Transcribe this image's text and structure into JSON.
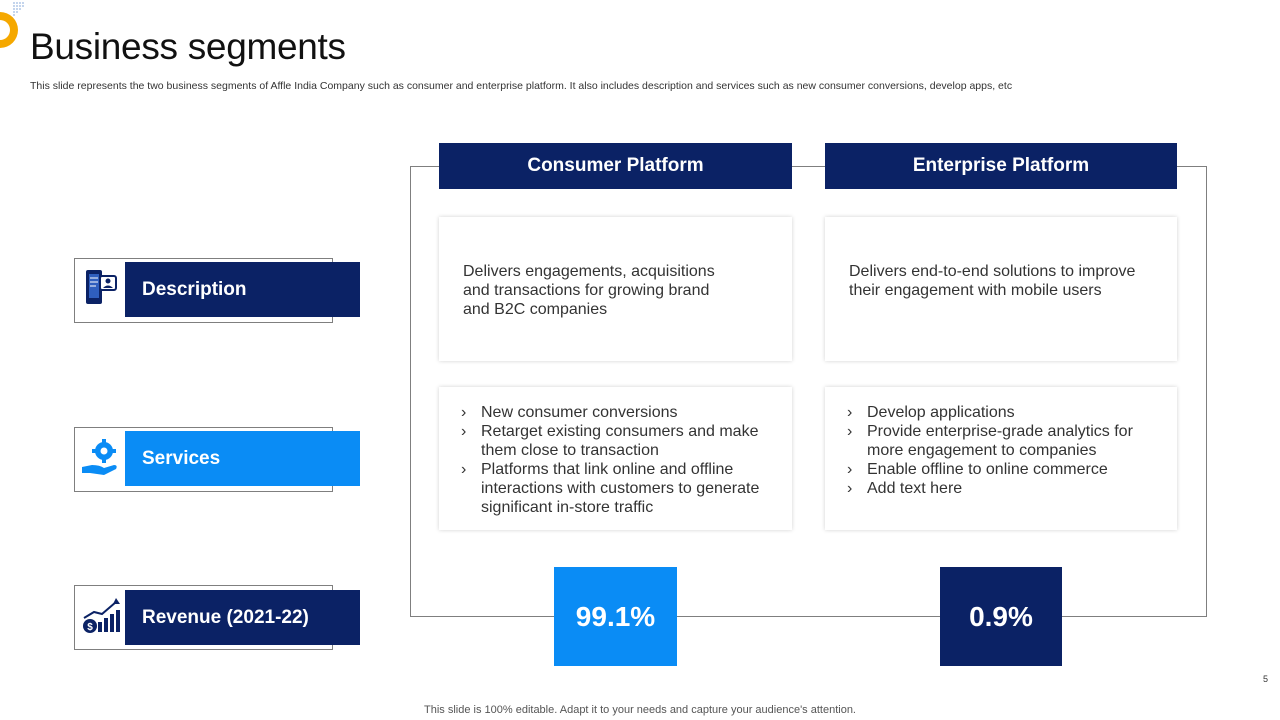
{
  "title": "Business segments",
  "subtitle": "This slide represents the two business segments of Affle India Company such as consumer and enterprise platform. It also includes description and services such as new consumer conversions, develop apps, etc",
  "rows": {
    "description": {
      "label": "Description",
      "icon": "mobile-user-icon"
    },
    "services": {
      "label": "Services",
      "icon": "gear-hand-icon"
    },
    "revenue": {
      "label": "Revenue (2021-22)",
      "icon": "dollar-growth-chart-icon"
    }
  },
  "columns": {
    "consumer": {
      "header": "Consumer Platform",
      "description": "Delivers engagements, acquisitions and transactions for growing brand and B2C companies",
      "services": [
        "New consumer  conversions",
        "Retarget existing consumers and make them close to transaction",
        "Platforms that link online and offline interactions with customers to generate significant in-store traffic"
      ],
      "revenue": "99.1%"
    },
    "enterprise": {
      "header": "Enterprise Platform",
      "description": "Delivers end-to-end solutions to improve their engagement with mobile users",
      "services": [
        "Develop applications",
        "Provide enterprise-grade analytics for more engagement to companies",
        "Enable offline to online commerce",
        "Add text here"
      ],
      "revenue": "0.9%"
    }
  },
  "bullet_glyph": "›",
  "footer": "This slide is 100% editable. Adapt it to your needs and capture your audience's attention.",
  "page_number": "5",
  "colors": {
    "navy": "#0b2265",
    "bright_blue": "#0a8cf5",
    "accent_yellow": "#f5a800"
  }
}
